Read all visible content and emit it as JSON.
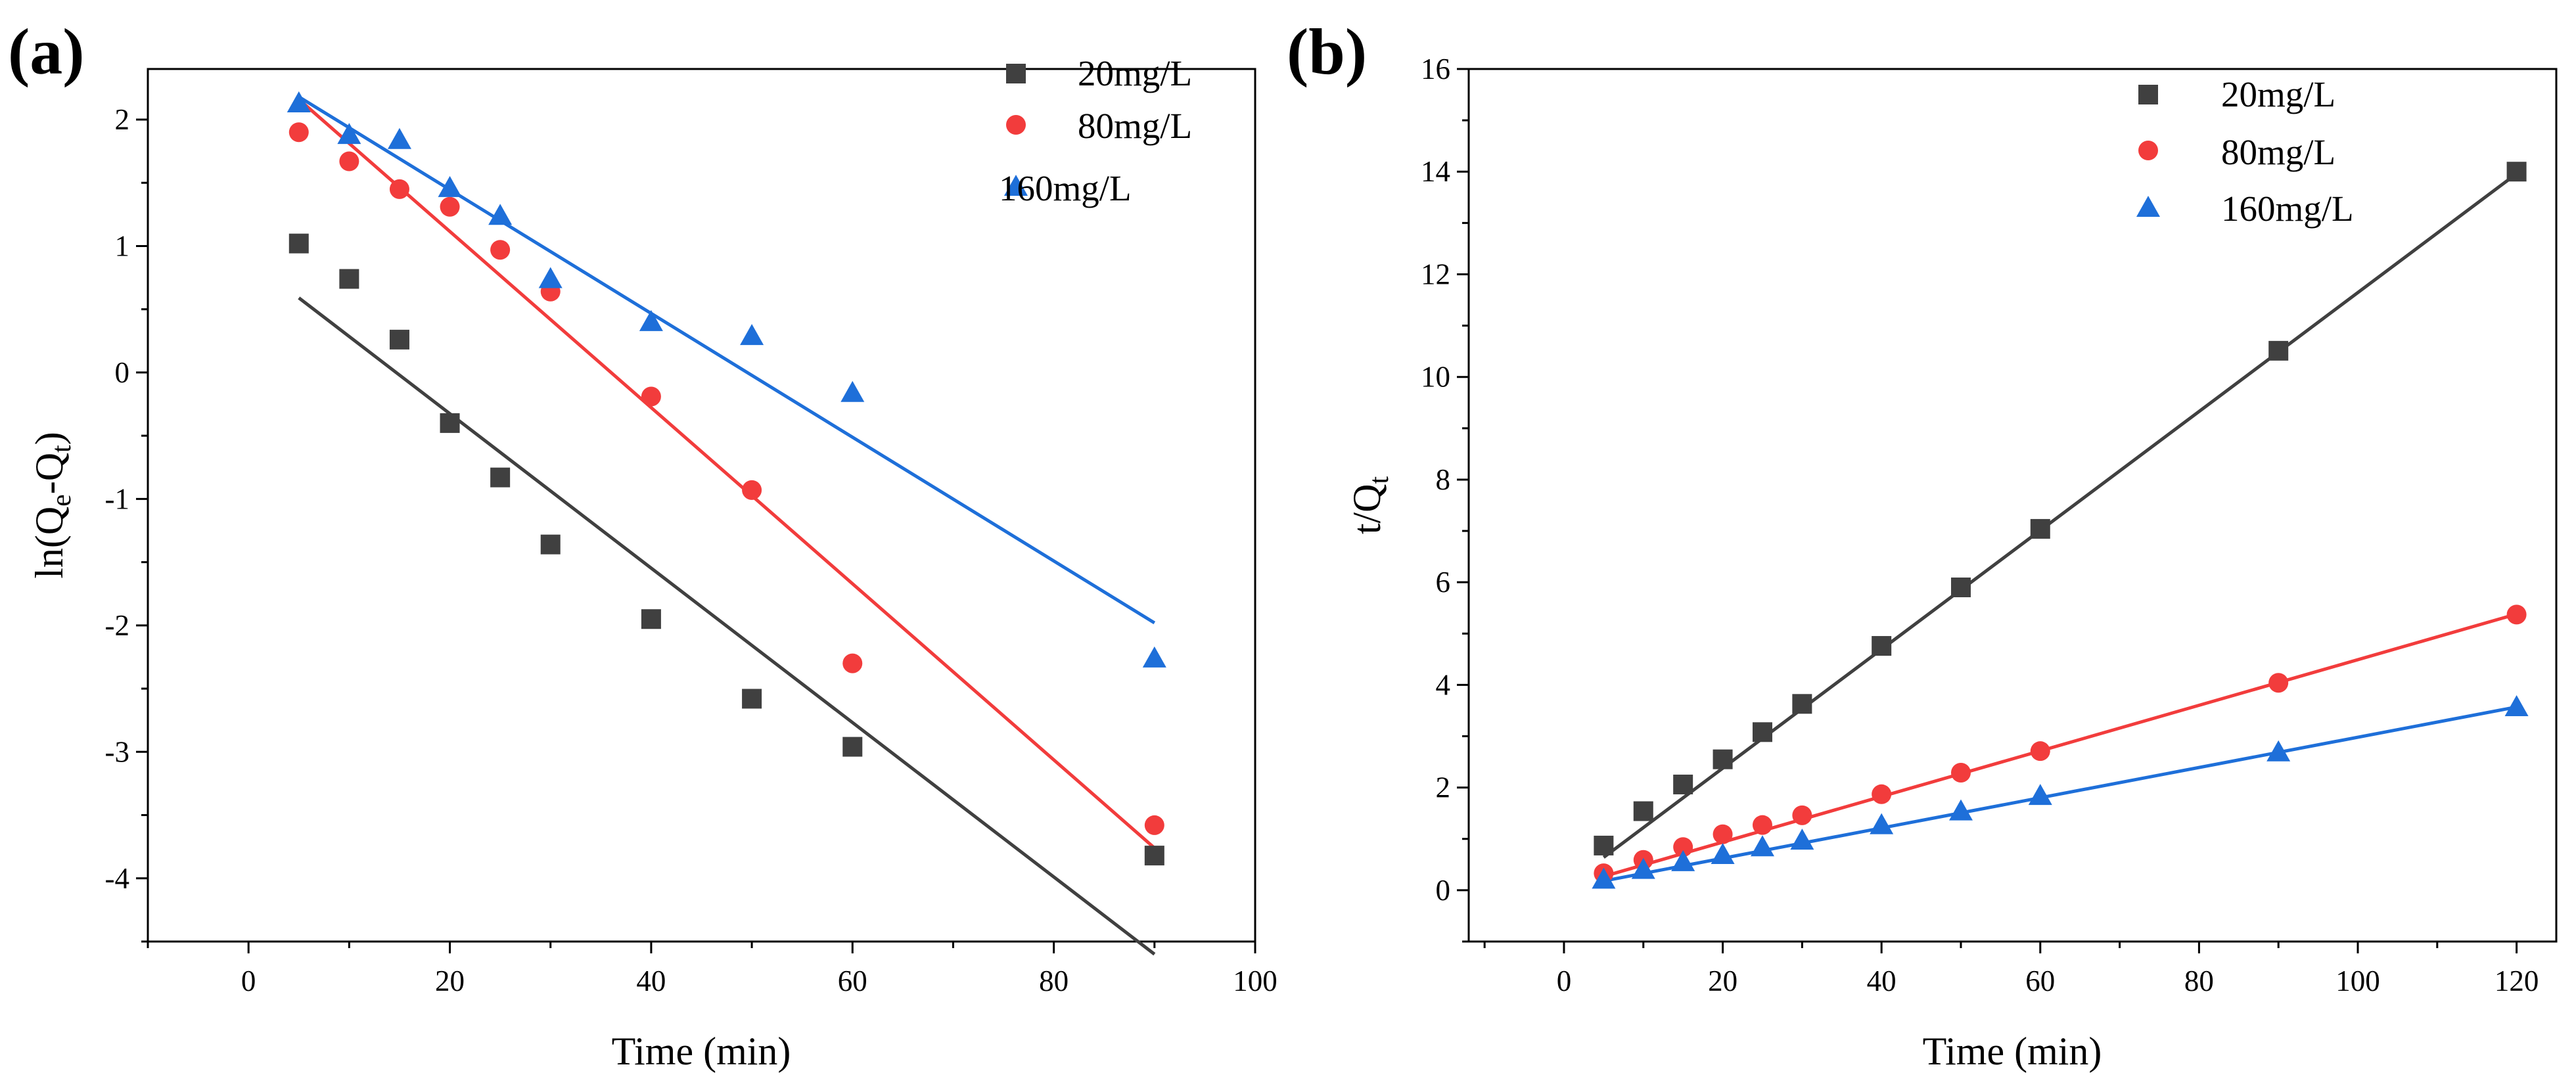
{
  "colors": {
    "c20": "#404040",
    "c80": "#f23c3c",
    "c160": "#1e6fd9"
  },
  "chart_data": [
    {
      "id": "a",
      "type": "scatter",
      "panel_label": "(a)",
      "xlabel": "Time (min)",
      "ylabel_parts": {
        "pre": "ln(Q",
        "sub1": "e",
        "mid": "-Q",
        "sub2": "t",
        "post": ")"
      },
      "xlim": [
        -10,
        100
      ],
      "ylim": [
        -4.5,
        2.4
      ],
      "xticks": [
        0,
        20,
        40,
        60,
        80,
        100
      ],
      "xtick_labels": [
        "0",
        "20",
        "40",
        "60",
        "80",
        "100"
      ],
      "yticks": [
        -4,
        -3,
        -2,
        -1,
        0,
        1,
        2
      ],
      "ytick_labels": [
        "-4",
        "-3",
        "-2",
        "-1",
        "0",
        "1",
        "2"
      ],
      "legend_position": "top-right",
      "series": [
        {
          "name": "20mg/L",
          "marker": "square",
          "color_key": "c20",
          "x": [
            5,
            10,
            15,
            20,
            25,
            30,
            40,
            50,
            60,
            90
          ],
          "y": [
            1.02,
            0.74,
            0.26,
            -0.4,
            -0.83,
            -1.36,
            -1.95,
            -2.58,
            -2.96,
            -3.82
          ],
          "fit": {
            "x": [
              5,
              90
            ],
            "y": [
              0.59,
              -4.6
            ]
          }
        },
        {
          "name": "80mg/L",
          "marker": "circle",
          "color_key": "c80",
          "x": [
            5,
            10,
            15,
            20,
            25,
            30,
            40,
            50,
            60,
            90
          ],
          "y": [
            1.9,
            1.67,
            1.45,
            1.31,
            0.97,
            0.64,
            -0.19,
            -0.93,
            -2.3,
            -3.58
          ],
          "fit": {
            "x": [
              5,
              90
            ],
            "y": [
              2.16,
              -3.76
            ]
          }
        },
        {
          "name": "160mg/L",
          "marker": "triangle",
          "color_key": "c160",
          "x": [
            5,
            10,
            15,
            20,
            25,
            30,
            40,
            50,
            60,
            90
          ],
          "y": [
            2.13,
            1.88,
            1.84,
            1.46,
            1.24,
            0.74,
            0.4,
            0.29,
            -0.16,
            -2.26
          ],
          "fit": {
            "x": [
              5,
              90
            ],
            "y": [
              2.18,
              -1.98
            ]
          }
        }
      ]
    },
    {
      "id": "b",
      "type": "scatter",
      "panel_label": "(b)",
      "xlabel": "Time (min)",
      "ylabel_parts": {
        "pre": "t/Q",
        "sub1": "t"
      },
      "xlim": [
        -12,
        125
      ],
      "ylim": [
        -1,
        16
      ],
      "xticks": [
        0,
        20,
        40,
        60,
        80,
        100,
        120
      ],
      "xtick_labels": [
        "0",
        "20",
        "40",
        "60",
        "80",
        "100",
        "120"
      ],
      "yticks": [
        0,
        2,
        4,
        6,
        8,
        10,
        12,
        14,
        16
      ],
      "ytick_labels": [
        "0",
        "2",
        "4",
        "6",
        "8",
        "10",
        "12",
        "14",
        "16"
      ],
      "legend_position": "top-center",
      "series": [
        {
          "name": "20mg/L",
          "marker": "square",
          "color_key": "c20",
          "x": [
            5,
            10,
            15,
            20,
            25,
            30,
            40,
            50,
            60,
            90,
            120
          ],
          "y": [
            0.87,
            1.54,
            2.06,
            2.55,
            3.08,
            3.63,
            4.76,
            5.9,
            7.04,
            10.51,
            14.0
          ],
          "fit": {
            "x": [
              5,
              120
            ],
            "y": [
              0.64,
              13.96
            ]
          }
        },
        {
          "name": "80mg/L",
          "marker": "circle",
          "color_key": "c80",
          "x": [
            5,
            10,
            15,
            20,
            25,
            30,
            40,
            50,
            60,
            90,
            120
          ],
          "y": [
            0.33,
            0.59,
            0.84,
            1.09,
            1.27,
            1.46,
            1.87,
            2.29,
            2.71,
            4.04,
            5.37
          ],
          "fit": {
            "x": [
              5,
              120
            ],
            "y": [
              0.27,
              5.38
            ]
          }
        },
        {
          "name": "160mg/L",
          "marker": "triangle",
          "color_key": "c160",
          "x": [
            5,
            10,
            15,
            20,
            25,
            30,
            40,
            50,
            60,
            90,
            120
          ],
          "y": [
            0.21,
            0.4,
            0.55,
            0.69,
            0.84,
            0.97,
            1.27,
            1.54,
            1.84,
            2.69,
            3.57
          ],
          "fit": {
            "x": [
              5,
              120
            ],
            "y": [
              0.18,
              3.57
            ]
          }
        }
      ]
    }
  ]
}
